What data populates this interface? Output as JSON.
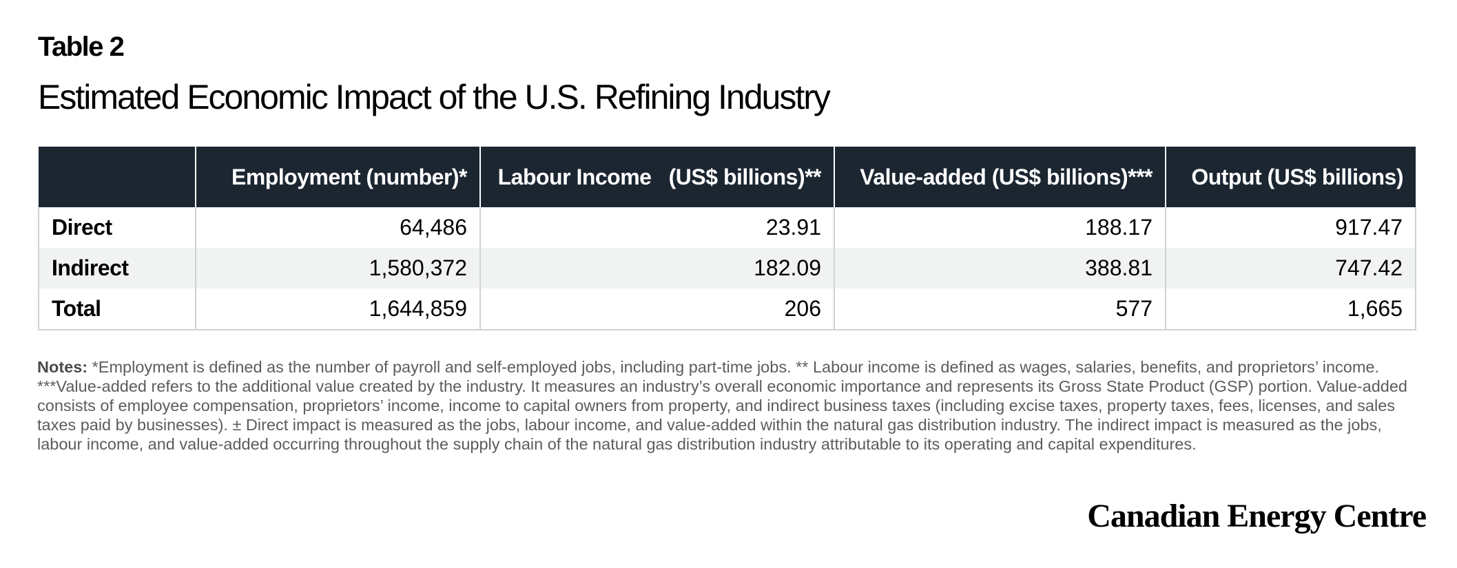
{
  "table_label": "Table 2",
  "title": "Estimated Economic Impact of the U.S. Refining Industry",
  "columns": [
    "",
    "Employment (number)*",
    "Labour Income   (US$ billions)**",
    "Value-added (US$ billions)***",
    "Output (US$ billions)"
  ],
  "rows": [
    {
      "label": "Direct",
      "values": [
        "64,486",
        "23.91",
        "188.17",
        "917.47"
      ]
    },
    {
      "label": "Indirect",
      "values": [
        "1,580,372",
        "182.09",
        "388.81",
        "747.42"
      ]
    },
    {
      "label": "Total",
      "values": [
        "1,644,859",
        "206",
        "577",
        "1,665"
      ]
    }
  ],
  "notes_label": "Notes:",
  "notes_text": " *Employment is defined as the number of payroll and self-employed jobs, including part-time jobs. ** Labour income is defined as wages, salaries, benefits, and proprietors’ income. ***Value-added refers to the additional value created by the industry. It measures an industry’s overall economic importance and represents its Gross State Product (GSP) portion. Value-added consists of employee compensation, proprietors’ income, income to capital owners from property, and indirect business taxes (including excise taxes, property taxes, fees, licenses, and sales taxes paid by businesses). ± Direct impact is measured as the jobs, labour income, and value-added within the natural gas distribution industry. The indirect impact is measured as the jobs, labour income, and value-added occurring throughout the supply chain of the natural gas distribution industry attributable to its operating and capital expenditures.",
  "brand": "Canadian Energy Centre",
  "colors": {
    "header_bg": "#1b2631",
    "row_shade": "#f1f2f2",
    "border": "#cfd2d4"
  }
}
